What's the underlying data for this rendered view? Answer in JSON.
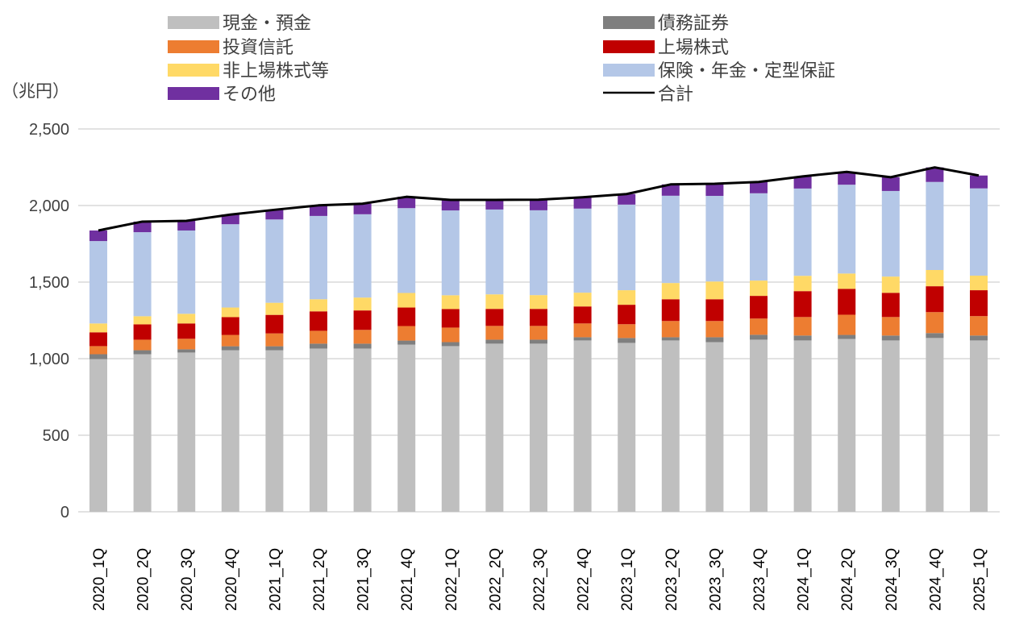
{
  "chart_data": {
    "type": "bar",
    "stacked": true,
    "title": "",
    "ylabel": "（兆円）",
    "xlabel": "",
    "ylim": [
      0,
      2500
    ],
    "yticks": [
      0,
      500,
      1000,
      1500,
      2000,
      2500
    ],
    "ytick_labels": [
      "0",
      "500",
      "1,000",
      "1,500",
      "2,000",
      "2,500"
    ],
    "grid": true,
    "legend_position": "top",
    "categories": [
      "2020_1Q",
      "2020_2Q",
      "2020_3Q",
      "2020_4Q",
      "2021_1Q",
      "2021_2Q",
      "2021_3Q",
      "2021_4Q",
      "2022_1Q",
      "2022_2Q",
      "2022_3Q",
      "2022_4Q",
      "2023_1Q",
      "2023_2Q",
      "2023_3Q",
      "2023_4Q",
      "2024_1Q",
      "2024_2Q",
      "2024_3Q",
      "2024_4Q",
      "2025_1Q"
    ],
    "series": [
      {
        "name": "現金・預金",
        "color": "#BFBFBF",
        "values": [
          997,
          1029,
          1040,
          1055,
          1055,
          1066,
          1066,
          1092,
          1082,
          1098,
          1098,
          1119,
          1103,
          1119,
          1108,
          1124,
          1119,
          1129,
          1119,
          1135,
          1119
        ]
      },
      {
        "name": "債務証券",
        "color": "#7F7F7F",
        "values": [
          32,
          26,
          21,
          26,
          26,
          32,
          32,
          26,
          26,
          26,
          26,
          21,
          32,
          21,
          32,
          32,
          32,
          26,
          32,
          32,
          32
        ]
      },
      {
        "name": "投資信託",
        "color": "#ED7D31",
        "values": [
          53,
          69,
          69,
          74,
          84,
          84,
          90,
          95,
          95,
          90,
          90,
          90,
          90,
          106,
          106,
          106,
          121,
          132,
          121,
          137,
          127
        ]
      },
      {
        "name": "上場株式",
        "color": "#C00000",
        "values": [
          90,
          100,
          100,
          116,
          121,
          127,
          127,
          121,
          121,
          111,
          111,
          111,
          127,
          142,
          142,
          148,
          169,
          169,
          158,
          169,
          169
        ]
      },
      {
        "name": "非上場株式等",
        "color": "#FFD966",
        "values": [
          58,
          53,
          63,
          63,
          79,
          79,
          84,
          95,
          90,
          95,
          90,
          90,
          95,
          106,
          116,
          100,
          100,
          100,
          106,
          106,
          95
        ]
      },
      {
        "name": "保険・年金・定型保証",
        "color": "#B4C7E7",
        "values": [
          538,
          549,
          544,
          544,
          544,
          544,
          544,
          554,
          554,
          554,
          554,
          549,
          559,
          570,
          559,
          570,
          570,
          580,
          559,
          575,
          570
        ]
      },
      {
        "name": "その他",
        "color": "#7030A0",
        "values": [
          69,
          69,
          63,
          63,
          63,
          69,
          69,
          74,
          69,
          63,
          69,
          74,
          69,
          74,
          79,
          74,
          79,
          84,
          90,
          95,
          84
        ]
      }
    ],
    "line": {
      "name": "合計",
      "color": "#000000",
      "values": [
        1837,
        1895,
        1900,
        1941,
        1972,
        2001,
        2012,
        2057,
        2037,
        2037,
        2038,
        2054,
        2075,
        2138,
        2142,
        2154,
        2190,
        2220,
        2185,
        2249,
        2196
      ]
    },
    "legend": [
      {
        "label": "現金・預金",
        "color": "#BFBFBF",
        "kind": "bar"
      },
      {
        "label": "債務証券",
        "color": "#7F7F7F",
        "kind": "bar"
      },
      {
        "label": "投資信託",
        "color": "#ED7D31",
        "kind": "bar"
      },
      {
        "label": "上場株式",
        "color": "#C00000",
        "kind": "bar"
      },
      {
        "label": "非上場株式等",
        "color": "#FFD966",
        "kind": "bar"
      },
      {
        "label": "保険・年金・定型保証",
        "color": "#B4C7E7",
        "kind": "bar"
      },
      {
        "label": "その他",
        "color": "#7030A0",
        "kind": "bar"
      },
      {
        "label": "合計",
        "color": "#000000",
        "kind": "line"
      }
    ]
  }
}
